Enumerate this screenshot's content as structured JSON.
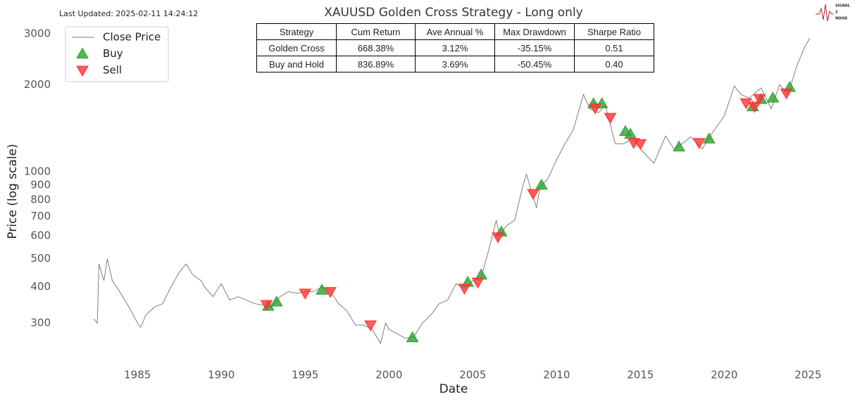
{
  "chart_data": {
    "type": "line",
    "title": "XAUUSD Golden Cross Strategy - Long only",
    "annotation": "Last Updated: 2025-02-11 14:24:12",
    "logo_text": [
      "SIGNAL",
      "2",
      "NOISE"
    ],
    "xlabel": "Date",
    "ylabel": "Price (log scale)",
    "yscale": "log",
    "grid": false,
    "legend": "upper left",
    "xlim": [
      1981,
      2027
    ],
    "xticks": [
      1985,
      1990,
      1995,
      2000,
      2005,
      2010,
      2015,
      2020,
      2025
    ],
    "ylim": [
      213,
      3300
    ],
    "yticks": [
      300,
      400,
      500,
      600,
      700,
      800,
      900,
      1000,
      2000,
      3000
    ],
    "series": [
      {
        "name": "Close Price",
        "type": "line",
        "color": "#7f7f7f",
        "x": [
          1982.4,
          1982.6,
          1982.7,
          1983.0,
          1983.2,
          1983.5,
          1984.0,
          1984.5,
          1985.0,
          1985.2,
          1985.5,
          1986.0,
          1986.5,
          1987.0,
          1987.5,
          1987.9,
          1988.3,
          1988.8,
          1989.0,
          1989.5,
          1990.0,
          1990.5,
          1991.0,
          1991.5,
          1992.0,
          1992.5,
          1993.0,
          1993.5,
          1994.0,
          1994.5,
          1995.0,
          1995.5,
          1996.0,
          1996.5,
          1997.0,
          1997.5,
          1998.0,
          1998.5,
          1999.0,
          1999.5,
          1999.8,
          2000.0,
          2000.5,
          2001.0,
          2001.5,
          2002.0,
          2002.5,
          2003.0,
          2003.5,
          2004.0,
          2004.5,
          2005.0,
          2005.5,
          2006.0,
          2006.4,
          2006.6,
          2007.0,
          2007.5,
          2008.0,
          2008.2,
          2008.8,
          2009.0,
          2009.5,
          2010.0,
          2010.5,
          2011.0,
          2011.6,
          2012.0,
          2012.5,
          2012.9,
          2013.5,
          2014.0,
          2014.5,
          2015.0,
          2015.8,
          2016.5,
          2017.0,
          2017.5,
          2018.0,
          2018.7,
          2019.0,
          2019.5,
          2020.0,
          2020.6,
          2021.0,
          2021.5,
          2022.2,
          2022.8,
          2023.3,
          2023.8,
          2024.3,
          2024.8,
          2025.1
        ],
        "values": [
          310,
          300,
          480,
          420,
          500,
          420,
          380,
          340,
          300,
          290,
          320,
          340,
          350,
          400,
          450,
          480,
          440,
          420,
          400,
          370,
          410,
          360,
          370,
          360,
          350,
          345,
          340,
          370,
          385,
          380,
          385,
          385,
          400,
          385,
          350,
          330,
          295,
          295,
          285,
          255,
          300,
          285,
          275,
          265,
          270,
          300,
          320,
          350,
          360,
          410,
          395,
          420,
          430,
          550,
          680,
          600,
          650,
          680,
          900,
          980,
          750,
          880,
          950,
          1100,
          1250,
          1400,
          1850,
          1650,
          1600,
          1700,
          1250,
          1250,
          1300,
          1200,
          1070,
          1330,
          1200,
          1250,
          1320,
          1200,
          1290,
          1420,
          1560,
          1980,
          1850,
          1800,
          1950,
          1650,
          2000,
          1850,
          2300,
          2700,
          2900
        ]
      },
      {
        "name": "Buy",
        "type": "scatter",
        "marker": "triangle-up",
        "color": "#2ca02c",
        "x": [
          1992.8,
          1993.3,
          1996.0,
          2001.4,
          2004.7,
          2005.5,
          2006.7,
          2009.1,
          2012.2,
          2012.7,
          2014.1,
          2014.4,
          2017.3,
          2019.1,
          2021.7,
          2022.2,
          2022.9,
          2023.9
        ],
        "values": [
          343,
          355,
          390,
          267,
          415,
          440,
          620,
          900,
          1720,
          1720,
          1380,
          1350,
          1220,
          1300,
          1680,
          1780,
          1800,
          1960
        ]
      },
      {
        "name": "Sell",
        "type": "scatter",
        "marker": "triangle-down",
        "color": "#ff3333",
        "x": [
          1992.7,
          1995.0,
          1996.5,
          1998.9,
          2004.5,
          2005.3,
          2006.5,
          2008.6,
          2012.3,
          2013.2,
          2014.6,
          2015.0,
          2018.5,
          2021.3,
          2021.8,
          2022.1,
          2023.7
        ],
        "values": [
          347,
          380,
          385,
          295,
          395,
          415,
          595,
          840,
          1660,
          1540,
          1260,
          1250,
          1260,
          1730,
          1680,
          1790,
          1870
        ]
      }
    ],
    "table": {
      "header": [
        "Strategy",
        "Cum Return",
        "Ave Annual %",
        "Max Drawdown",
        "Sharpe Ratio"
      ],
      "rows": [
        [
          "Golden Cross",
          "668.38%",
          "3.12%",
          "-35.15%",
          "0.51"
        ],
        [
          "Buy and Hold",
          "836.89%",
          "3.69%",
          "-50.45%",
          "0.40"
        ]
      ]
    }
  }
}
